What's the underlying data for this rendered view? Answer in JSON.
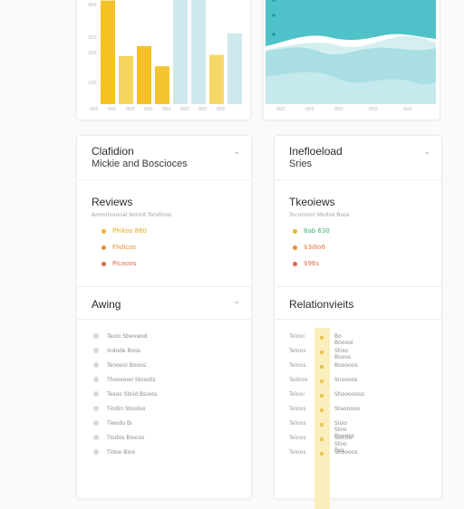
{
  "bar_chart": {
    "y_ticks": [
      "400",
      "300",
      "200",
      "100"
    ],
    "x_ticks": [
      "000",
      "000",
      "000",
      "000",
      "000",
      "000",
      "000",
      "000"
    ],
    "colors": {
      "yellow": "#f4c531",
      "light_yellow": "#f6d869",
      "light_blue": "#cbe9ee"
    },
    "chart_data": {
      "type": "bar",
      "categories": [
        "1",
        "2",
        "3",
        "4",
        "5",
        "6",
        "7",
        "8"
      ],
      "values": [
        410,
        190,
        230,
        150,
        420,
        420,
        195,
        280
      ],
      "bar_colors": [
        "#f5c125",
        "#f6d45e",
        "#f5c125",
        "#f4c531",
        "#cde9ee",
        "#cde9ee",
        "#f6d869",
        "#cde9ee"
      ],
      "ylim": [
        0,
        430
      ]
    }
  },
  "area_chart": {
    "x_ticks": [
      "000",
      "000",
      "000",
      "000",
      "000"
    ],
    "colors": {
      "teal": "#4fc1c9",
      "mid": "#a9dfe3",
      "light": "#d5eff1"
    }
  },
  "left_panel": {
    "title": "Clafidion",
    "subtitle": "Mickie and Boscioces",
    "reviews_heading": "Reviews",
    "reviews_caption": "Ammitosonal bonnit fondinos",
    "reviews": [
      {
        "text": "Phikos 880",
        "color": "#e0a81d"
      },
      {
        "text": "Flidicos",
        "color": "#e68a2e"
      },
      {
        "text": "Picaoos",
        "color": "#dd6b4a"
      }
    ],
    "awing_heading": "Awing",
    "list": [
      "Teoio Sbeowod",
      "Indode Boos",
      "Tenoooi Booos",
      "Thoosooo Stooots",
      "Tesoo Stoid Bsioos",
      "Tiodin Stooloo",
      "Tieodo Bi",
      "Tiodos Biooso",
      "Tidoe Bioo"
    ]
  },
  "right_panel": {
    "title": "Inefloeload",
    "subtitle": "Sries",
    "reviews_heading": "Tkeoiews",
    "reviews_caption": "Tocomoor Modos Boos",
    "reviews": [
      {
        "text": "8ab 630",
        "color": "#39b36f"
      },
      {
        "text": "$3i8o6",
        "color": "#e07a3a"
      },
      {
        "text": "$96s",
        "color": "#dd6b4a"
      }
    ],
    "relations_heading": "Relationvieits",
    "relations": [
      {
        "left": "Telooi",
        "right": "Bo Booool"
      },
      {
        "left": "Teloos",
        "right": "Stioo Booos"
      },
      {
        "left": "Teloos",
        "right": "Booooos"
      },
      {
        "left": "Tedoos",
        "right": "Snoooos"
      },
      {
        "left": "Telooi",
        "right": "Stioooooos"
      },
      {
        "left": "Teloos",
        "right": "Staooooo"
      },
      {
        "left": "Teloos",
        "right": "Sisio Stoo Boooos"
      },
      {
        "left": "Teloos",
        "right": "Siscoo Stoo Bos"
      },
      {
        "left": "Teloos",
        "right": "Stioooos"
      }
    ]
  },
  "chevron_glyph": "⌄"
}
